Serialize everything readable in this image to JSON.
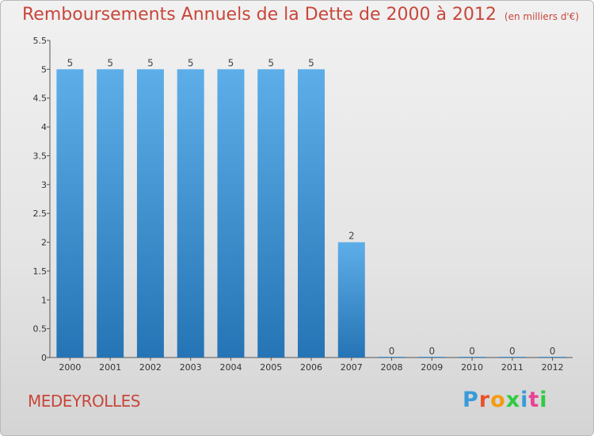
{
  "header": {
    "title": "Remboursements Annuels de la Dette de 2000 à 2012",
    "subtitle": "(en milliers d'€)"
  },
  "footer": {
    "commune": "MEDEYROLLES",
    "logo": [
      "P",
      "r",
      "o",
      "x",
      "i",
      "t",
      "i"
    ],
    "logo_colors": [
      "#3a9ad9",
      "#e8522a",
      "#f39c12",
      "#2ecc40",
      "#3a9ad9",
      "#e84393",
      "#2ecc40"
    ]
  },
  "chart_data": {
    "type": "bar",
    "categories": [
      "2000",
      "2001",
      "2002",
      "2003",
      "2004",
      "2005",
      "2006",
      "2007",
      "2008",
      "2009",
      "2010",
      "2011",
      "2012"
    ],
    "values": [
      5,
      5,
      5,
      5,
      5,
      5,
      5,
      2,
      0,
      0,
      0,
      0,
      0
    ],
    "ylim": [
      0,
      5.5
    ],
    "yticks": [
      "0",
      "0.5",
      "1",
      "1.5",
      "2",
      "2.5",
      "3",
      "3.5",
      "4",
      "4.5",
      "5",
      "5.5"
    ],
    "bar_color_top": "#5daee8",
    "bar_color_bottom": "#2574b5",
    "grid": false
  }
}
